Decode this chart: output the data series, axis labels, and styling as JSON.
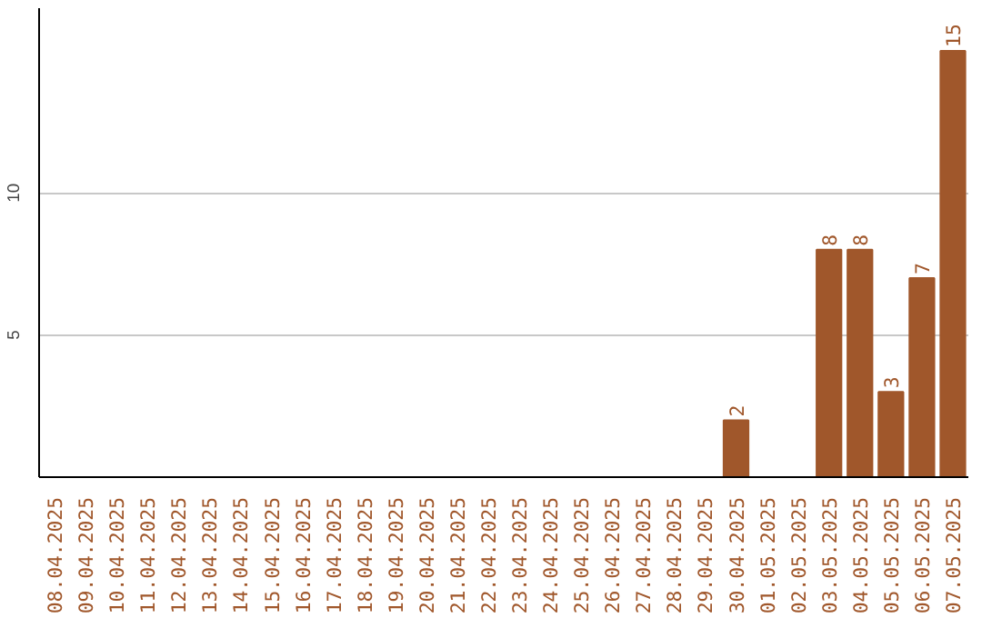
{
  "chart_data": {
    "type": "bar",
    "categories": [
      "08.04.2025",
      "09.04.2025",
      "10.04.2025",
      "11.04.2025",
      "12.04.2025",
      "13.04.2025",
      "14.04.2025",
      "15.04.2025",
      "16.04.2025",
      "17.04.2025",
      "18.04.2025",
      "19.04.2025",
      "20.04.2025",
      "21.04.2025",
      "22.04.2025",
      "23.04.2025",
      "24.04.2025",
      "25.04.2025",
      "26.04.2025",
      "27.04.2025",
      "28.04.2025",
      "29.04.2025",
      "30.04.2025",
      "01.05.2025",
      "02.05.2025",
      "03.05.2025",
      "04.05.2025",
      "05.05.2025",
      "06.05.2025",
      "07.05.2025"
    ],
    "values": [
      0,
      0,
      0,
      0,
      0,
      0,
      0,
      0,
      0,
      0,
      0,
      0,
      0,
      0,
      0,
      0,
      0,
      0,
      0,
      0,
      0,
      0,
      2,
      0,
      0,
      8,
      8,
      3,
      7,
      15
    ],
    "value_labels": [
      null,
      null,
      null,
      null,
      null,
      null,
      null,
      null,
      null,
      null,
      null,
      null,
      null,
      null,
      null,
      null,
      null,
      null,
      null,
      null,
      null,
      null,
      "2",
      null,
      null,
      "8",
      "8",
      "3",
      "7",
      "15"
    ],
    "color": "#a0572b",
    "ylim": [
      0,
      16.5
    ],
    "yticks": [
      5,
      10
    ],
    "grid": "y"
  }
}
